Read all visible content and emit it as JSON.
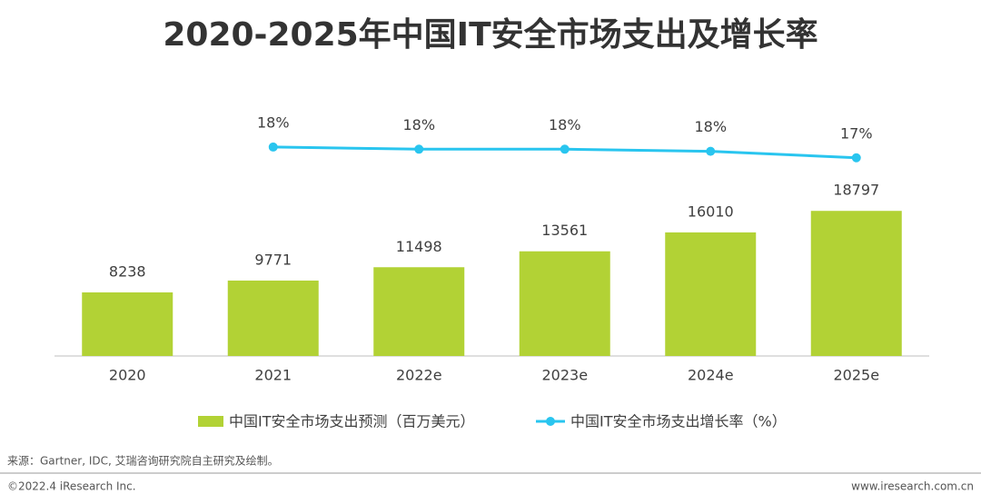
{
  "chart_data": {
    "type": "bar",
    "title": "2020-2025年中国IT安全市场支出及增长率",
    "categories": [
      "2020",
      "2021",
      "2022e",
      "2023e",
      "2024e",
      "2025e"
    ],
    "series": [
      {
        "name": "中国IT安全市场支出预测（百万美元）",
        "type": "bar",
        "color": "#b2d235",
        "values": [
          8238,
          9771,
          11498,
          13561,
          16010,
          18797
        ]
      },
      {
        "name": "中国IT安全市场支出增长率（%）",
        "type": "line",
        "axis": "y2",
        "color": "#29c5ef",
        "values": [
          null,
          18.4,
          18.2,
          18.2,
          18.0,
          17.4
        ],
        "value_labels": [
          null,
          "18%",
          "18%",
          "18%",
          "18%",
          "17%"
        ]
      }
    ],
    "ylim": [
      0,
      30000
    ],
    "y2lim": [
      -1,
      20.5
    ],
    "source": "来源：Gartner, IDC, 艾瑞咨询研究院自主研究及绘制。",
    "footer_left": "©2022.4 iResearch Inc.",
    "footer_right": "www.iresearch.com.cn"
  }
}
